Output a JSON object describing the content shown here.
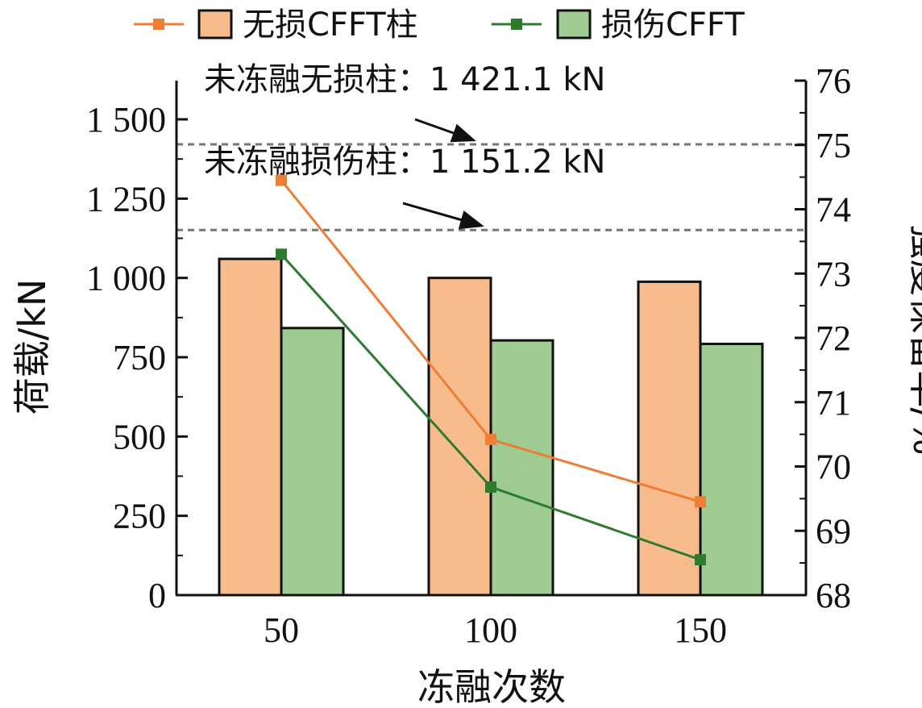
{
  "chart_data": {
    "type": "bar",
    "categories": [
      "50",
      "100",
      "150"
    ],
    "xlabel": "冻融次数",
    "ylabel": "荷载/kN",
    "y2label": "强度保留率/%",
    "ylim": [
      0,
      1500
    ],
    "yticks": [
      0,
      250,
      500,
      750,
      1000,
      1250,
      1500
    ],
    "ytick_labels": [
      "0",
      "250",
      "500",
      "750",
      "1 000",
      "1 250",
      "1 500"
    ],
    "y2lim": [
      68,
      76
    ],
    "y2ticks": [
      68,
      69,
      70,
      71,
      72,
      73,
      74,
      75,
      76
    ],
    "bar_series": [
      {
        "name": "无损CFFT柱",
        "values": [
          1060,
          1000,
          988
        ],
        "color": "#F8BC8C"
      },
      {
        "name": "损伤CFFT",
        "values": [
          842,
          803,
          792
        ],
        "color": "#9DCB92"
      }
    ],
    "line_series": [
      {
        "values": [
          74.45,
          70.42,
          69.45
        ],
        "color": "#EE7D35",
        "axis": "right"
      },
      {
        "values": [
          73.3,
          69.68,
          68.55
        ],
        "color": "#2E7B30",
        "axis": "right"
      }
    ],
    "reference_lines": [
      {
        "label": "未冻融无损柱：1 421.1 kN",
        "value": 1421.1
      },
      {
        "label": "未冻融损伤柱：1 151.2 kN",
        "value": 1151.2
      }
    ],
    "grid": false,
    "legend_position": "top"
  }
}
